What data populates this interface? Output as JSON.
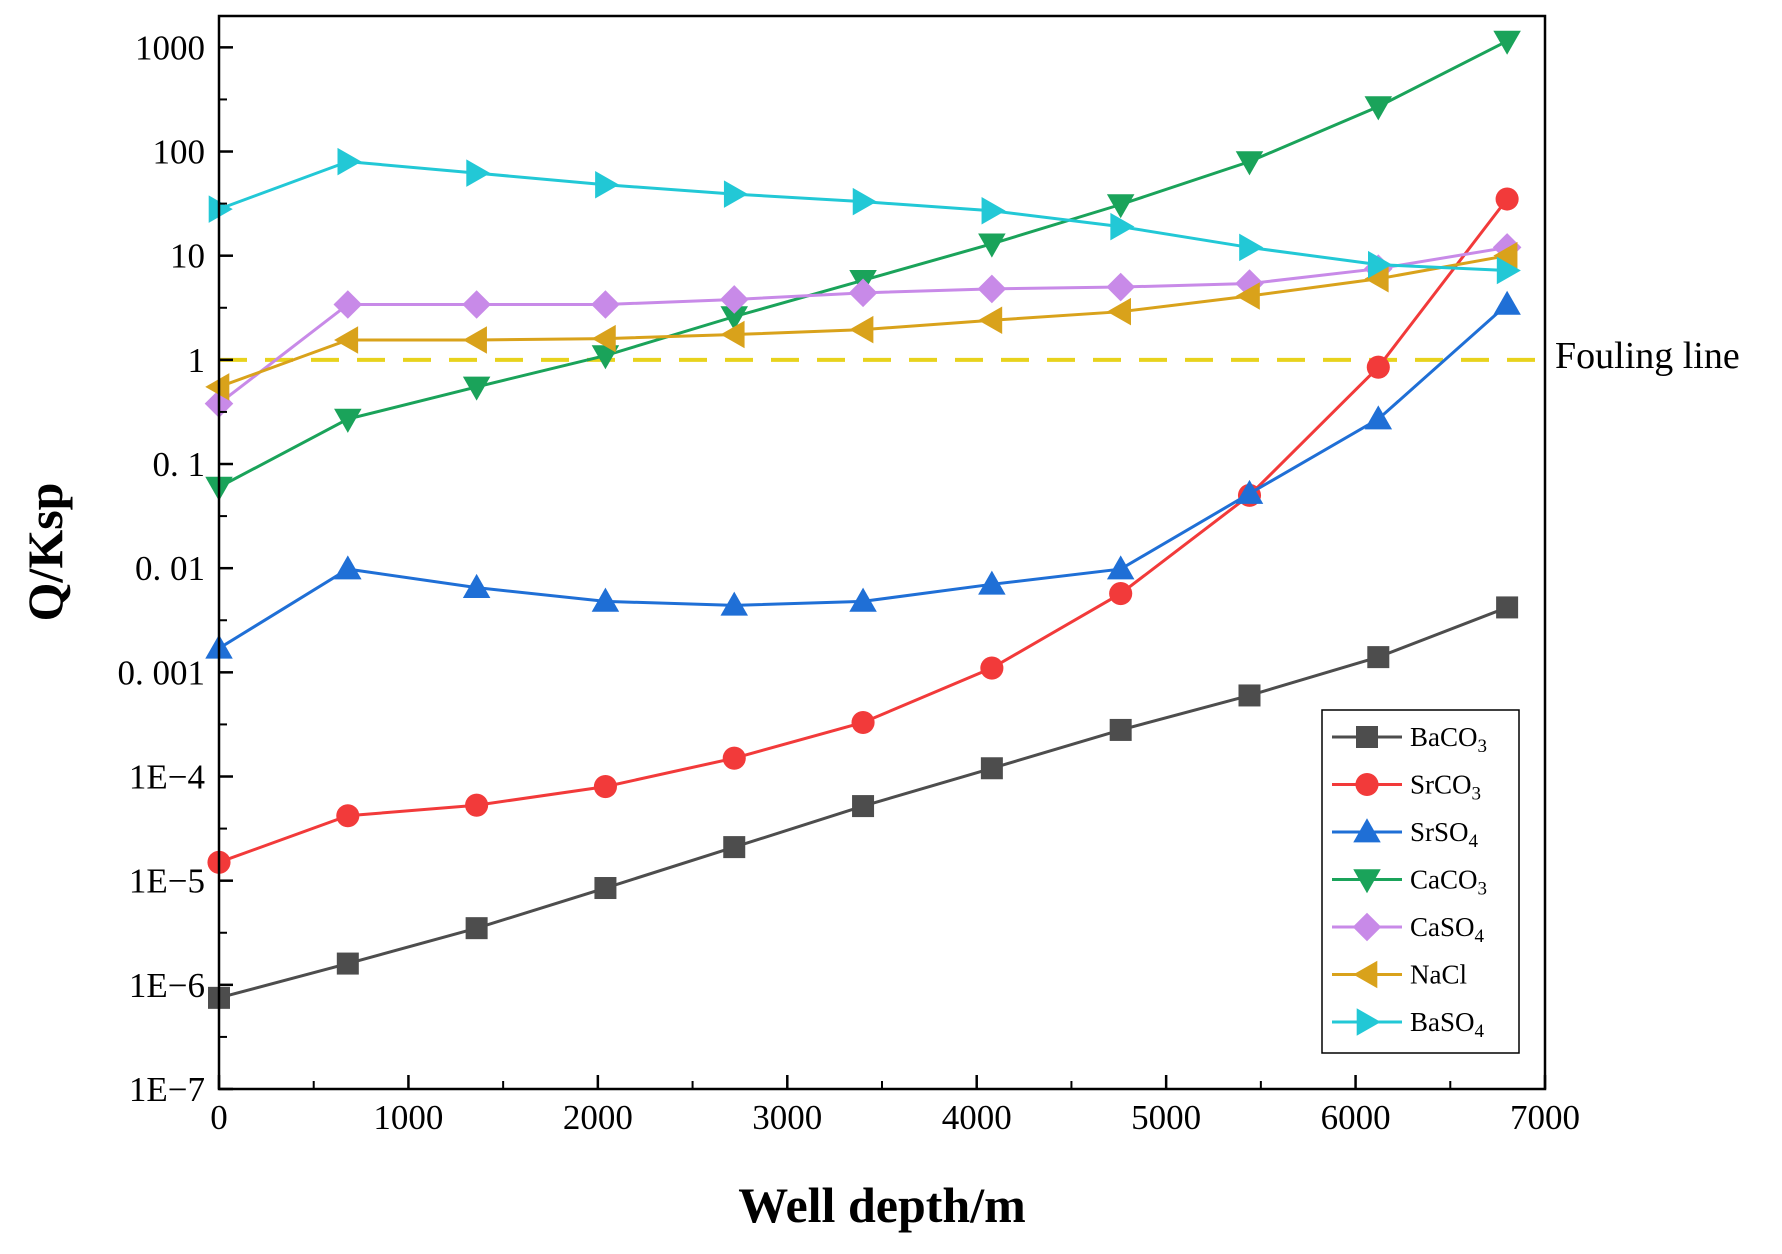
{
  "chart_data": {
    "type": "line",
    "title": "",
    "xlabel": "Well depth/m",
    "ylabel": "Q/Ksp",
    "xlim": [
      0,
      7000
    ],
    "ylim": [
      1e-07,
      2000
    ],
    "yscale": "log",
    "xticks": [
      0,
      1000,
      2000,
      3000,
      4000,
      5000,
      6000,
      7000
    ],
    "xtick_labels": [
      "0",
      "1000",
      "2000",
      "3000",
      "4000",
      "5000",
      "6000",
      "7000"
    ],
    "yticks": [
      1e-07,
      1e-06,
      1e-05,
      0.0001,
      0.001,
      0.01,
      0.1,
      1,
      10,
      100,
      1000
    ],
    "ytick_labels": [
      "1E−7",
      "1E−6",
      "1E−5",
      "1E−4",
      "0. 001",
      "0. 01",
      "0. 1",
      "1",
      "10",
      "100",
      "1000"
    ],
    "grid": false,
    "legend_position": "bottom-right",
    "x": [
      0,
      680,
      1360,
      2040,
      2720,
      3400,
      4080,
      4760,
      5440,
      6120,
      6800
    ],
    "series": [
      {
        "name": "BaCO",
        "subscript": "3",
        "color": "#4d4d4d",
        "marker": "square",
        "values": [
          7.5e-07,
          1.6e-06,
          3.5e-06,
          8.5e-06,
          2.1e-05,
          5.2e-05,
          0.00012,
          0.00028,
          0.0006,
          0.0014,
          0.0042
        ]
      },
      {
        "name": "SrCO",
        "subscript": "3",
        "color": "#f23a3a",
        "marker": "circle",
        "values": [
          1.5e-05,
          4.2e-05,
          5.3e-05,
          8e-05,
          0.00015,
          0.00033,
          0.0011,
          0.0057,
          0.05,
          0.85,
          35
        ]
      },
      {
        "name": "SrSO",
        "subscript": "4",
        "color": "#1f6fd6",
        "marker": "triangle-up",
        "values": [
          0.0017,
          0.0098,
          0.0065,
          0.0048,
          0.0044,
          0.0048,
          0.007,
          0.0098,
          0.052,
          0.27,
          3.4
        ]
      },
      {
        "name": "CaCO",
        "subscript": "3",
        "color": "#1aa35a",
        "marker": "triangle-down",
        "values": [
          0.06,
          0.27,
          0.55,
          1.1,
          2.6,
          5.8,
          13,
          31,
          80,
          270,
          1150
        ]
      },
      {
        "name": "CaSO",
        "subscript": "4",
        "color": "#c88ae8",
        "marker": "diamond",
        "values": [
          0.38,
          3.4,
          3.4,
          3.4,
          3.8,
          4.4,
          4.8,
          5.0,
          5.4,
          7.5,
          12
        ]
      },
      {
        "name": "NaCl",
        "subscript": "",
        "color": "#d9a21b",
        "marker": "triangle-left",
        "values": [
          0.55,
          1.55,
          1.55,
          1.6,
          1.75,
          1.95,
          2.4,
          2.9,
          4.1,
          6.0,
          10
        ]
      },
      {
        "name": "BaSO",
        "subscript": "4",
        "color": "#22c8d6",
        "marker": "triangle-right",
        "values": [
          28,
          80,
          62,
          48,
          39,
          33,
          27,
          19,
          12,
          8.2,
          7.2
        ]
      }
    ],
    "annotations": [
      {
        "type": "hline",
        "y": 1,
        "label": "Fouling line",
        "color": "#e8d21c",
        "style": "dashed"
      }
    ]
  }
}
